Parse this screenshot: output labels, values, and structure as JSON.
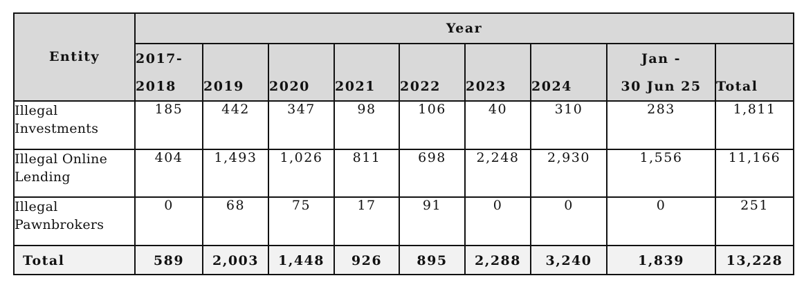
{
  "table": {
    "entity_header": "Entity",
    "year_header": "Year",
    "columns": [
      {
        "line1": "2017-",
        "line2": "2018"
      },
      {
        "line1": "",
        "line2": "2019"
      },
      {
        "line1": "",
        "line2": "2020"
      },
      {
        "line1": "",
        "line2": "2021"
      },
      {
        "line1": "",
        "line2": "2022"
      },
      {
        "line1": "",
        "line2": "2023"
      },
      {
        "line1": "",
        "line2": "2024"
      },
      {
        "line1": "Jan -",
        "line2": "30 Jun 25"
      },
      {
        "line1": "",
        "line2": "Total"
      }
    ],
    "rows": [
      {
        "entity_line1": "Illegal",
        "entity_line2": "Investments",
        "values": [
          "185",
          "442",
          "347",
          "98",
          "106",
          "40",
          "310",
          "283",
          "1,811"
        ]
      },
      {
        "entity_line1": "Illegal Online",
        "entity_line2": "Lending",
        "values": [
          "404",
          "1,493",
          "1,026",
          "811",
          "698",
          "2,248",
          "2,930",
          "1,556",
          "11,166"
        ]
      },
      {
        "entity_line1": "Illegal",
        "entity_line2": "Pawnbrokers",
        "values": [
          "0",
          "68",
          "75",
          "17",
          "91",
          "0",
          "0",
          "0",
          "251"
        ]
      }
    ],
    "total": {
      "label": "Total",
      "values": [
        "589",
        "2,003",
        "1,448",
        "926",
        "895",
        "2,288",
        "3,240",
        "1,839",
        "13,228"
      ]
    }
  }
}
